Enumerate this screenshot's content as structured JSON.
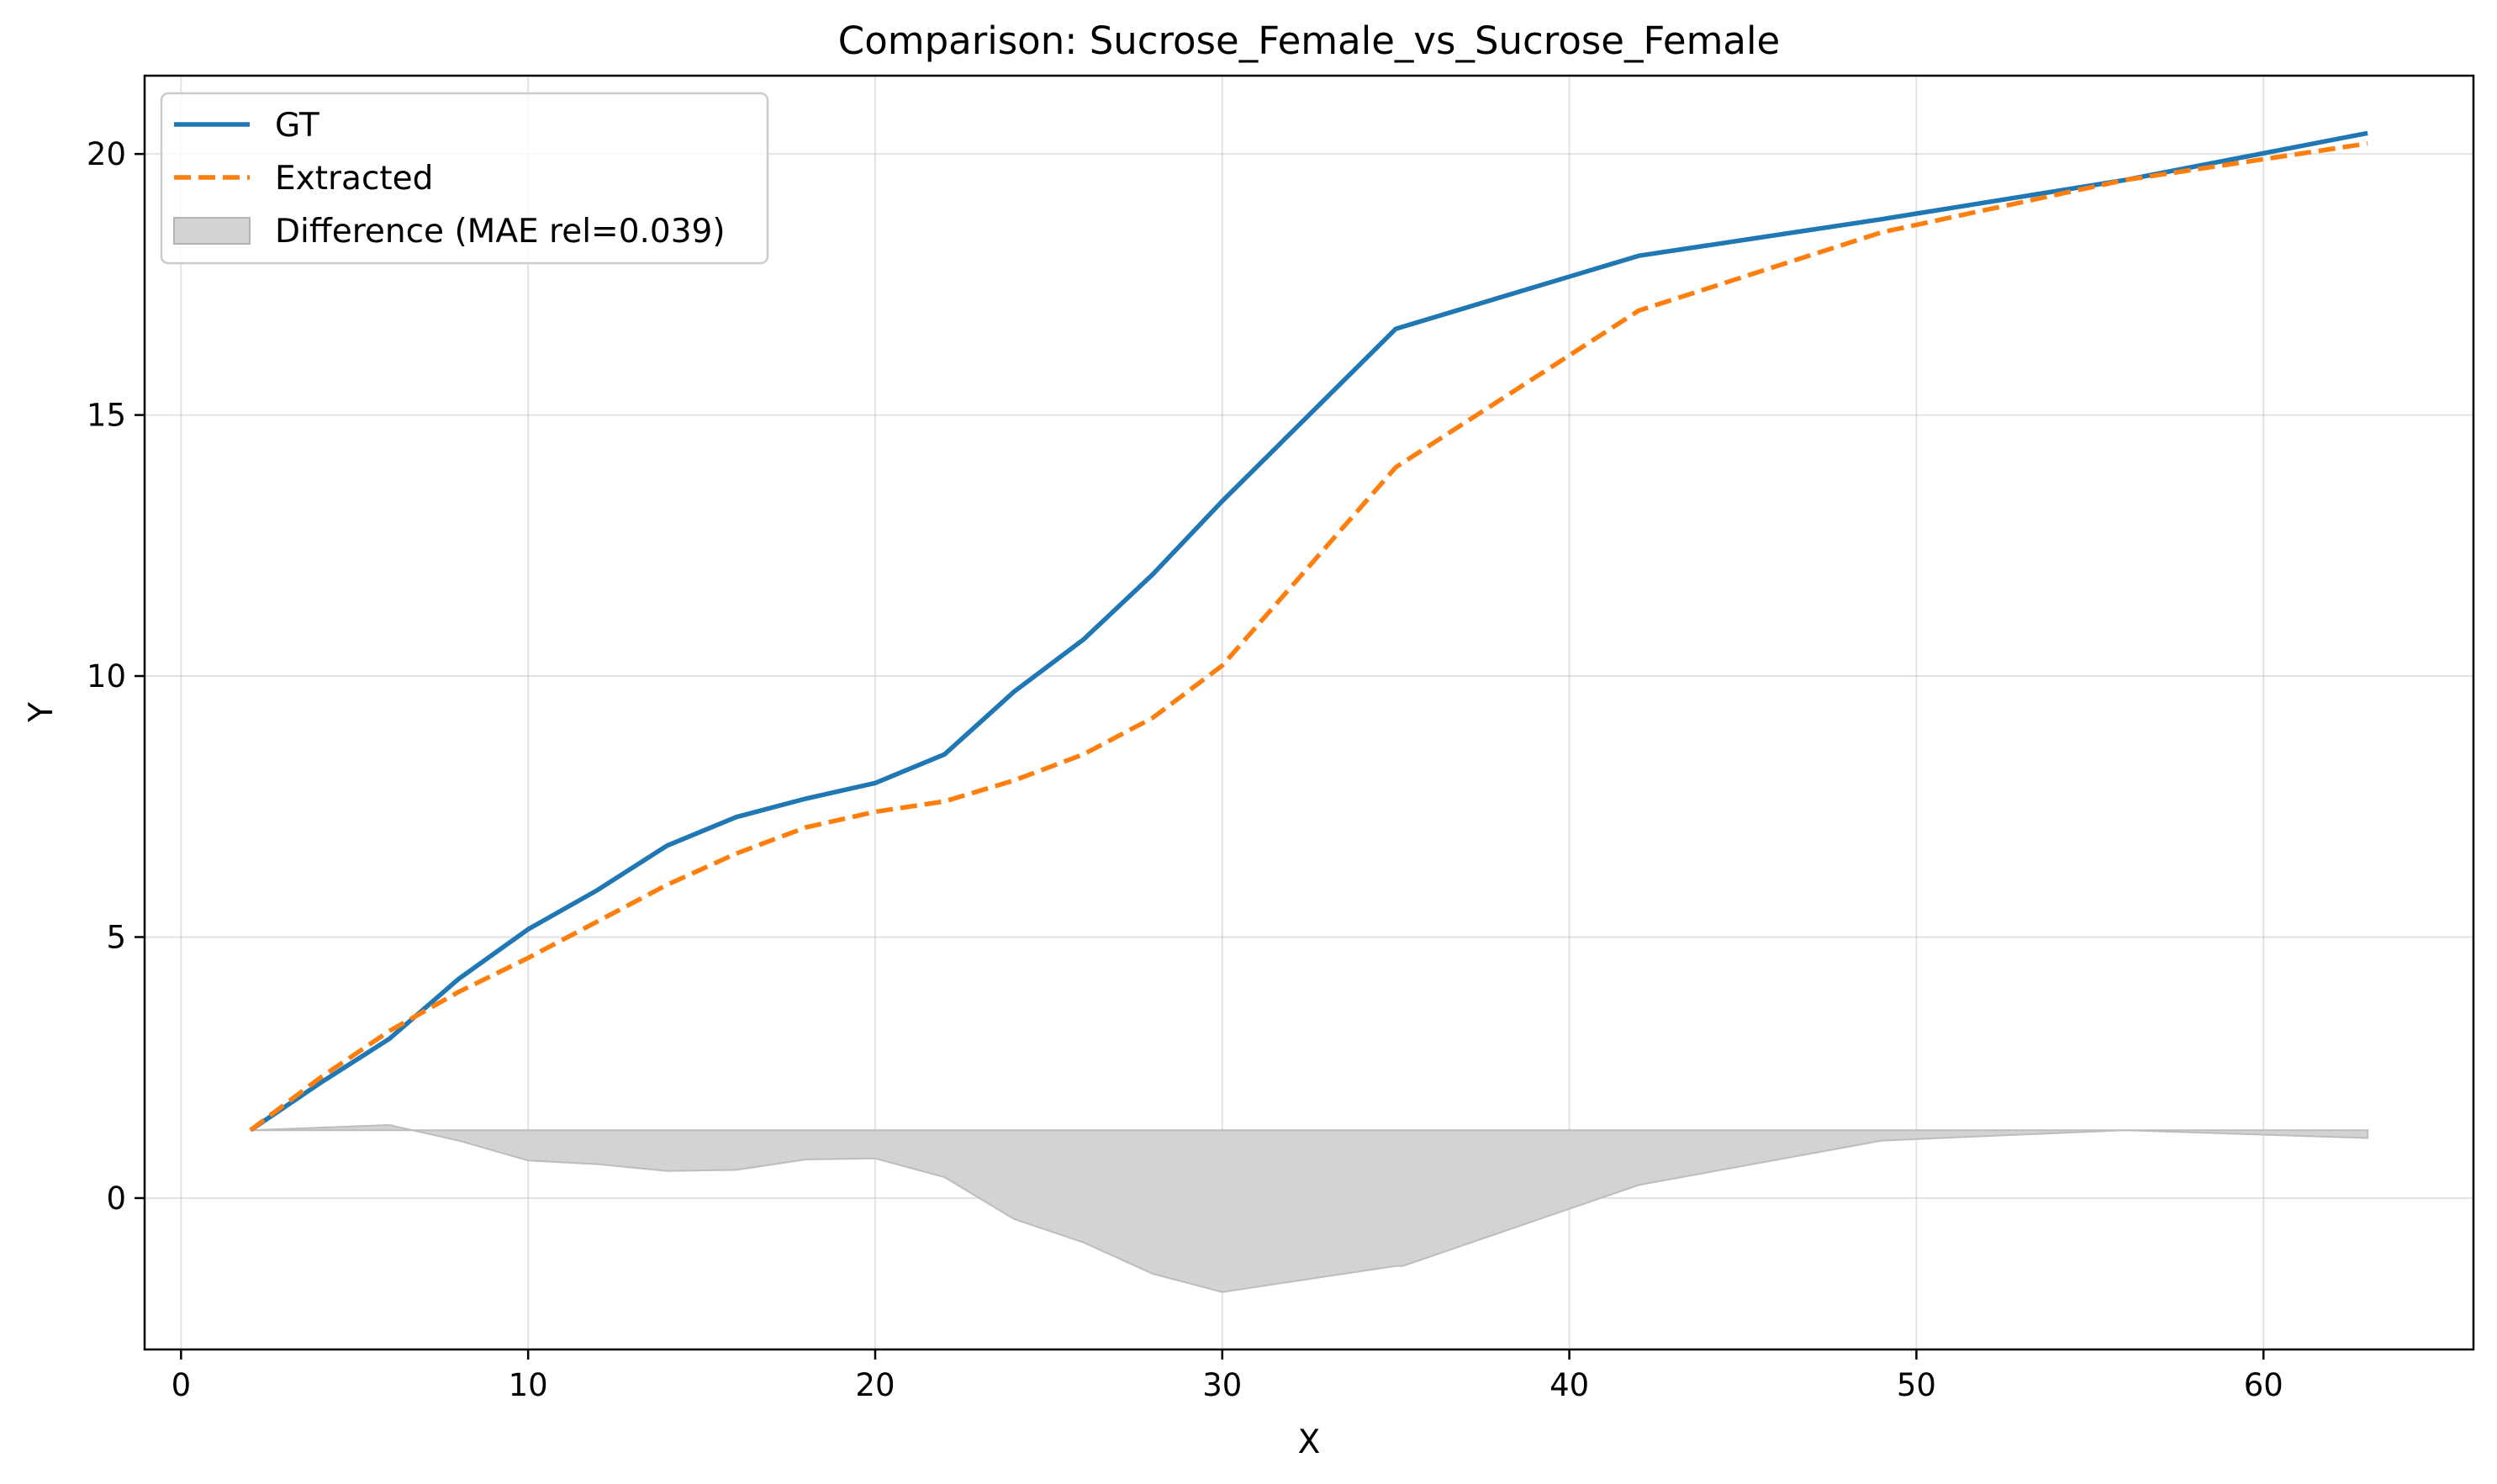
{
  "chart_data": {
    "type": "line",
    "title": "Comparison: Sucrose_Female_vs_Sucrose_Female",
    "xlabel": "X",
    "ylabel": "Y",
    "xlim": [
      -1.05,
      66.05
    ],
    "ylim": [
      -2.9,
      21.5
    ],
    "xticks": [
      0,
      10,
      20,
      30,
      40,
      50,
      60
    ],
    "yticks": [
      0,
      5,
      10,
      15,
      20
    ],
    "xtick_labels": [
      "0",
      "10",
      "20",
      "30",
      "40",
      "50",
      "60"
    ],
    "ytick_labels": [
      "0",
      "5",
      "10",
      "15",
      "20"
    ],
    "grid": true,
    "legend_position": "upper-left",
    "series": [
      {
        "name": "GT",
        "style": "solid",
        "color": "#1f77b4",
        "x": [
          2,
          4,
          6,
          8,
          10,
          12,
          14,
          16,
          18,
          20,
          22,
          24,
          26,
          28,
          30,
          35,
          42,
          49,
          56,
          63
        ],
        "y": [
          1.3,
          2.2,
          3.05,
          4.2,
          5.15,
          5.9,
          6.75,
          7.3,
          7.65,
          7.95,
          8.5,
          9.7,
          10.7,
          11.95,
          13.35,
          16.65,
          18.05,
          18.75,
          19.5,
          20.4
        ]
      },
      {
        "name": "Extracted",
        "style": "dashed",
        "color": "#ff7f0e",
        "x": [
          2,
          4,
          6,
          8,
          10,
          12,
          14,
          16,
          18,
          20,
          22,
          24,
          26,
          28,
          30,
          35,
          42,
          49,
          56,
          63
        ],
        "y": [
          1.3,
          2.3,
          3.2,
          3.95,
          4.6,
          5.3,
          6.0,
          6.6,
          7.1,
          7.4,
          7.6,
          8.0,
          8.5,
          9.2,
          10.2,
          14.0,
          17.0,
          18.5,
          19.5,
          20.2
        ]
      }
    ],
    "difference": {
      "name": "Difference (MAE rel=0.039)",
      "color": "#d3d3d3",
      "baseline": 1.3,
      "x": [
        2,
        4,
        6,
        8,
        10,
        12,
        14,
        16,
        18,
        20,
        22,
        24,
        26,
        28,
        30,
        35,
        35.2,
        42,
        49,
        56,
        63
      ],
      "y": [
        1.3,
        1.35,
        1.4,
        1.1,
        0.72,
        0.65,
        0.52,
        0.54,
        0.74,
        0.76,
        0.4,
        -0.4,
        -0.85,
        -1.45,
        -1.8,
        -1.3,
        -1.3,
        0.25,
        1.1,
        1.3,
        1.15
      ]
    }
  }
}
